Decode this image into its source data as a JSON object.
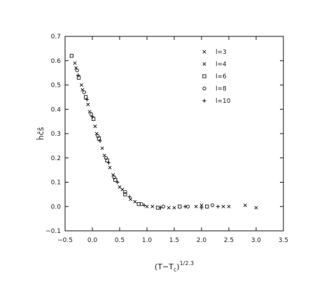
{
  "chart_data": {
    "type": "scatter",
    "title": "",
    "xlabel": "(T−Tₑ)",
    "xlabel_base": "(T−T",
    "xlabel_sub": "c",
    "xlabel_close": ")",
    "xlabel_sup": "1/2.3",
    "ylabel": "ĥĉŝ",
    "xlim": [
      -0.5,
      3.5
    ],
    "ylim": [
      -0.1,
      0.7
    ],
    "xticks": [
      "−0.5",
      "0.0",
      "0.5",
      "1.0",
      "1.5",
      "2.0",
      "2.5",
      "3.0",
      "3.5"
    ],
    "xtick_values": [
      -0.5,
      0.0,
      0.5,
      1.0,
      1.5,
      2.0,
      2.5,
      3.0,
      3.5
    ],
    "yticks": [
      "−0.1",
      "0.0",
      "0.1",
      "0.2",
      "0.3",
      "0.4",
      "0.5",
      "0.6",
      "0.7"
    ],
    "ytick_values": [
      -0.1,
      0.0,
      0.1,
      0.2,
      0.3,
      0.4,
      0.5,
      0.6,
      0.7
    ],
    "grid": false,
    "legend_position": "top-right",
    "series": [
      {
        "name": "l=3",
        "marker": "x",
        "x": [
          -0.32,
          -0.2,
          -0.08,
          0.05,
          0.18,
          0.32,
          0.5,
          0.7,
          1.0,
          1.4,
          1.9,
          2.5,
          3.0
        ],
        "y": [
          0.59,
          0.5,
          0.42,
          0.33,
          0.24,
          0.16,
          0.08,
          0.03,
          0.0,
          -0.005,
          0.0,
          0.0,
          -0.005
        ]
      },
      {
        "name": "l=4",
        "marker": "x",
        "x": [
          -0.3,
          -0.18,
          -0.05,
          0.08,
          0.22,
          0.38,
          0.55,
          0.78,
          1.1,
          1.5,
          2.0,
          2.4,
          2.8
        ],
        "y": [
          0.57,
          0.48,
          0.39,
          0.3,
          0.21,
          0.13,
          0.07,
          0.02,
          0.0,
          -0.005,
          0.005,
          0.0,
          0.005
        ]
      },
      {
        "name": "l=6",
        "marker": "square",
        "x": [
          -0.38,
          -0.25,
          -0.12,
          0.02,
          0.12,
          0.27,
          0.42,
          0.6,
          0.85,
          1.2,
          1.6,
          2.1
        ],
        "y": [
          0.62,
          0.53,
          0.45,
          0.36,
          0.28,
          0.19,
          0.11,
          0.05,
          0.01,
          -0.005,
          0.0,
          0.0
        ]
      },
      {
        "name": "l=8",
        "marker": "circle",
        "x": [
          -0.28,
          -0.15,
          -0.02,
          0.1,
          0.25,
          0.4,
          0.6,
          0.9,
          1.3,
          1.75,
          2.2
        ],
        "y": [
          0.56,
          0.47,
          0.38,
          0.29,
          0.2,
          0.12,
          0.06,
          0.01,
          0.0,
          0.0,
          0.005
        ]
      },
      {
        "name": "l=10",
        "marker": "plus",
        "x": [
          -0.26,
          -0.1,
          0.0,
          0.14,
          0.3,
          0.46,
          0.68,
          0.95,
          1.25,
          1.7,
          2.0,
          2.3
        ],
        "y": [
          0.54,
          0.44,
          0.37,
          0.27,
          0.18,
          0.1,
          0.04,
          0.005,
          -0.005,
          0.0,
          -0.005,
          0.0
        ]
      }
    ]
  }
}
